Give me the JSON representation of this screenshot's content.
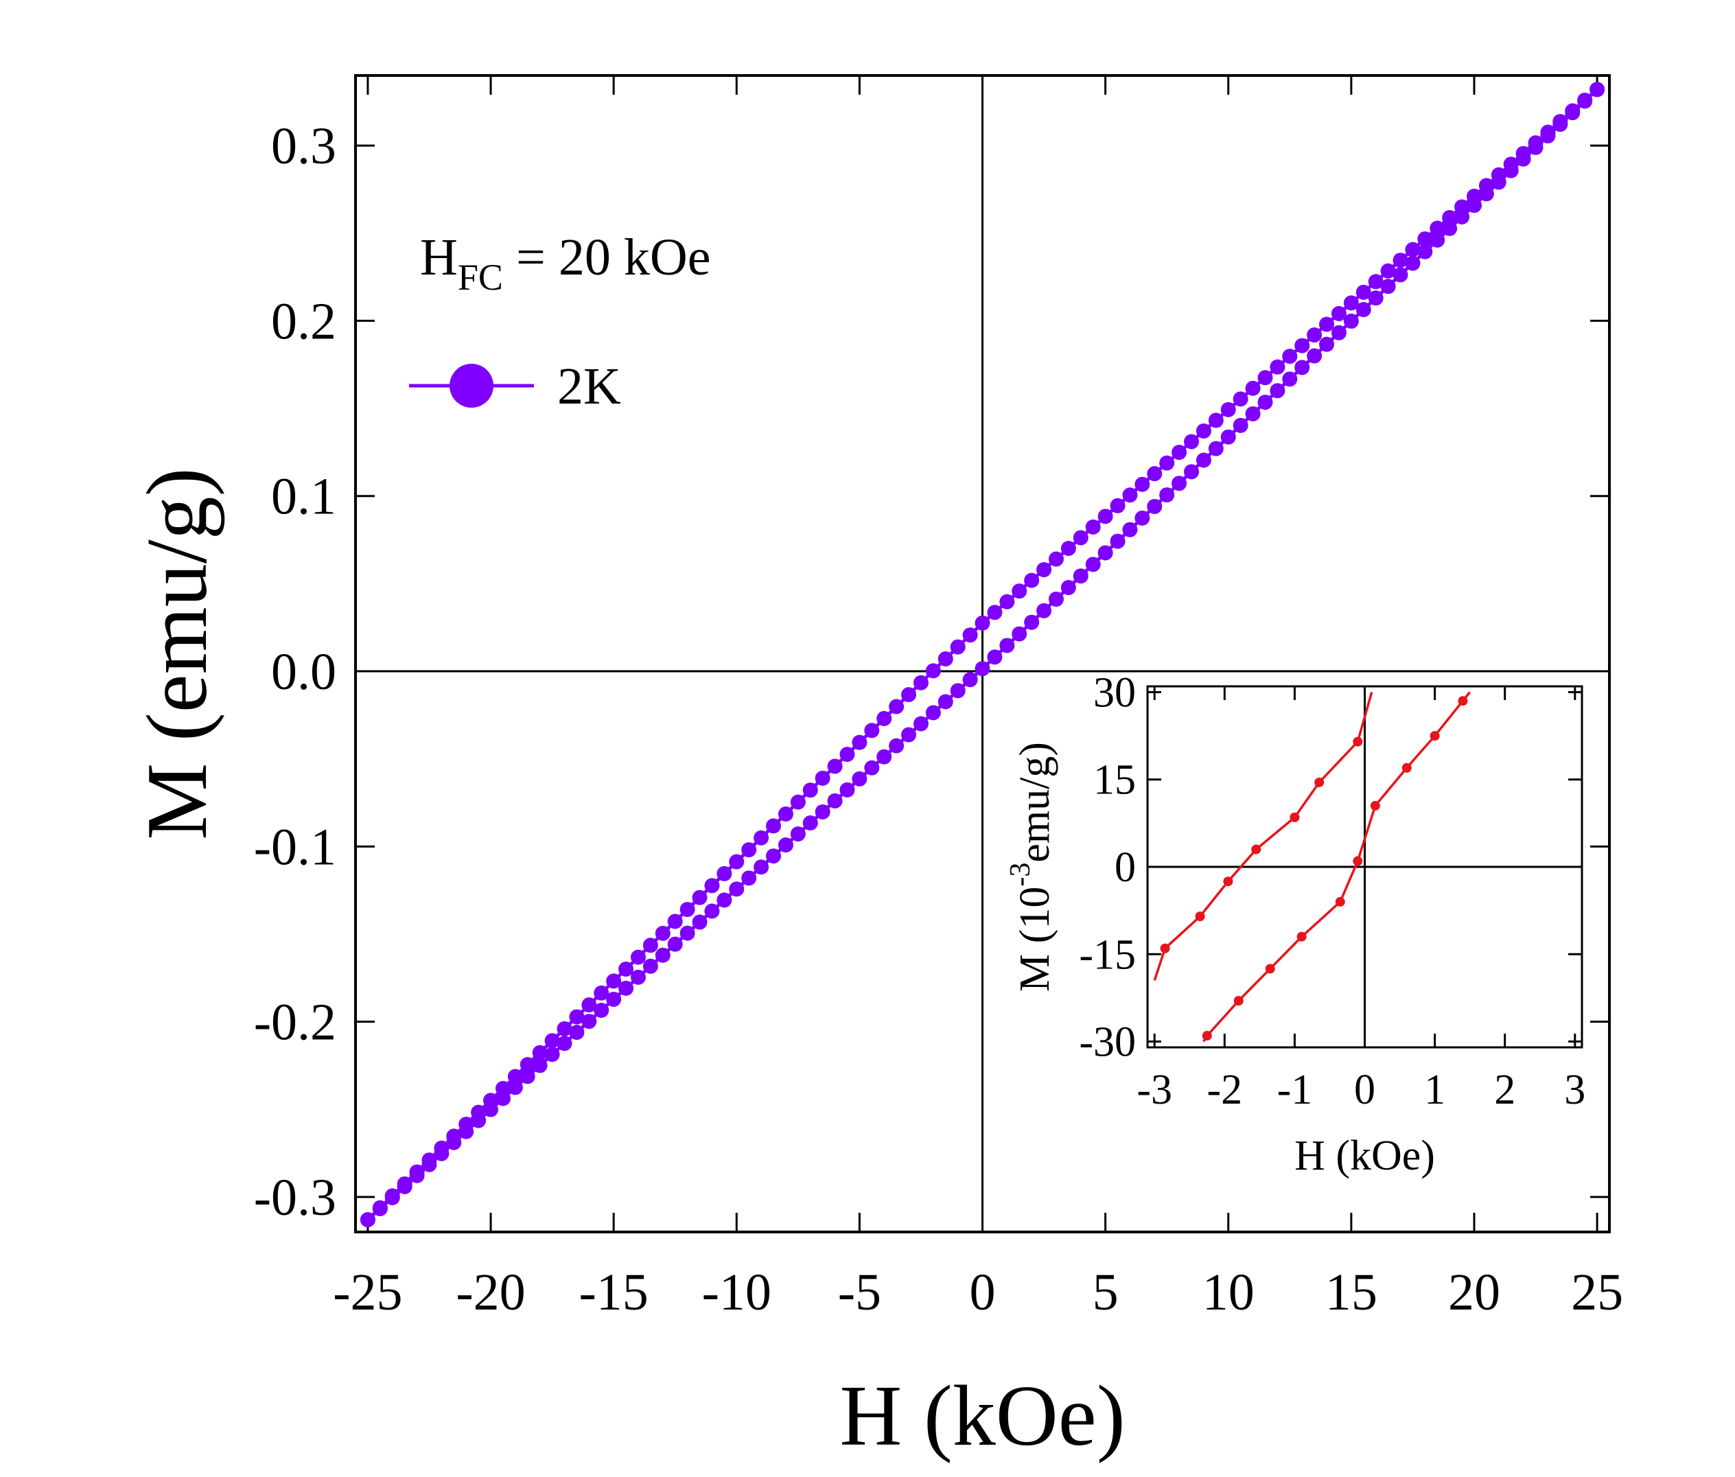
{
  "chart_data": [
    {
      "type": "scatter",
      "title": "",
      "xlabel": "H (kOe)",
      "ylabel": "M (emu/g)",
      "xlim": [
        -25.5,
        25.5
      ],
      "ylim": [
        -0.32,
        0.34
      ],
      "xticks": [
        -25,
        -20,
        -15,
        -10,
        -5,
        0,
        5,
        10,
        15,
        20,
        25
      ],
      "xtick_labels": [
        "-25",
        "-20",
        "-15",
        "-10",
        "-5",
        "0",
        "5",
        "10",
        "15",
        "20",
        "25"
      ],
      "yticks": [
        -0.3,
        -0.2,
        -0.1,
        0.0,
        0.1,
        0.2,
        0.3
      ],
      "ytick_labels": [
        "-0.3",
        "-0.2",
        "-0.1",
        "0.0",
        "0.1",
        "0.2",
        "0.3"
      ],
      "zero_lines": true,
      "annotation": {
        "base": "H",
        "subscript": "FC",
        "rest": " = 20 kOe"
      },
      "legend": {
        "placement": "top-left",
        "entries": [
          {
            "label": "2K",
            "color": "#7F00FF",
            "marker": "circle"
          }
        ]
      },
      "series": [
        {
          "name": "2K",
          "color": "#7F00FF",
          "description": "field-cooled hysteresis loop, points every 0.5 kOe",
          "branches": [
            {
              "name": "descending",
              "x": [
                25,
                0,
                -25
              ],
              "y": [
                0.332,
                0.0275,
                -0.313
              ]
            },
            {
              "name": "ascending",
              "x": [
                -25,
                0,
                25
              ],
              "y": [
                -0.313,
                0.0015,
                0.332
              ]
            }
          ],
          "step": 0.5
        }
      ]
    },
    {
      "type": "line",
      "title": "",
      "placement": "inset-bottom-right",
      "xlabel": "H (kOe)",
      "ylabel": {
        "prefix": "M (10",
        "exponent": "-3",
        "suffix": "emu/g)"
      },
      "xlim": [
        -3.1,
        3.1
      ],
      "ylim": [
        -31,
        31
      ],
      "xticks": [
        -3,
        -2,
        -1,
        0,
        1,
        2,
        3
      ],
      "xtick_labels": [
        "-3",
        "-2",
        "-1",
        "0",
        "1",
        "2",
        "3"
      ],
      "yticks": [
        -30,
        -15,
        0,
        15,
        30
      ],
      "ytick_labels": [
        "-30",
        "-15",
        "0",
        "15",
        "30"
      ],
      "zero_lines": true,
      "series": [
        {
          "name": "descending branch",
          "color": "#E8141B",
          "x": [
            0.1,
            -0.1,
            -0.65,
            -1.0,
            -1.55,
            -1.95,
            -2.35,
            -2.85,
            -3.0
          ],
          "y": [
            30,
            21.5,
            14.5,
            8.5,
            3.0,
            -2.5,
            -8.5,
            -14,
            -19.5
          ],
          "markers": [
            false,
            true,
            true,
            true,
            true,
            true,
            true,
            true,
            false
          ]
        },
        {
          "name": "ascending branch",
          "color": "#E8141B",
          "x": [
            -2.3,
            -2.25,
            -1.8,
            -1.35,
            -0.9,
            -0.35,
            -0.1,
            0.15,
            0.6,
            1.0,
            1.4,
            1.5
          ],
          "y": [
            -30,
            -29,
            -23,
            -17.5,
            -12,
            -6,
            1.0,
            10.5,
            17,
            22.5,
            28.5,
            30
          ],
          "markers": [
            false,
            true,
            true,
            true,
            true,
            true,
            true,
            true,
            true,
            true,
            true,
            false
          ]
        }
      ]
    }
  ]
}
